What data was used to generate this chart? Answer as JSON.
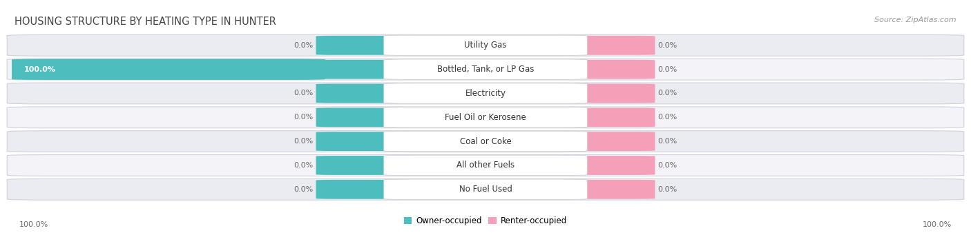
{
  "title": "Housing Structure by Heating Type in Hunter",
  "source": "Source: ZipAtlas.com",
  "categories": [
    "Utility Gas",
    "Bottled, Tank, or LP Gas",
    "Electricity",
    "Fuel Oil or Kerosene",
    "Coal or Coke",
    "All other Fuels",
    "No Fuel Used"
  ],
  "owner_values": [
    0.0,
    100.0,
    0.0,
    0.0,
    0.0,
    0.0,
    0.0
  ],
  "renter_values": [
    0.0,
    0.0,
    0.0,
    0.0,
    0.0,
    0.0,
    0.0
  ],
  "owner_color": "#4dbdbd",
  "renter_color": "#f4a0b8",
  "row_bg_color_odd": "#ebebf2",
  "row_bg_color_even": "#f4f4f8",
  "gap_color": "#ffffff",
  "label_box_color": "#ffffff",
  "title_fontsize": 10.5,
  "source_fontsize": 8,
  "value_fontsize": 8,
  "category_fontsize": 8.5,
  "legend_fontsize": 8.5,
  "owner_label": "Owner-occupied",
  "renter_label": "Renter-occupied",
  "axis_label_left": "100.0%",
  "axis_label_right": "100.0%"
}
